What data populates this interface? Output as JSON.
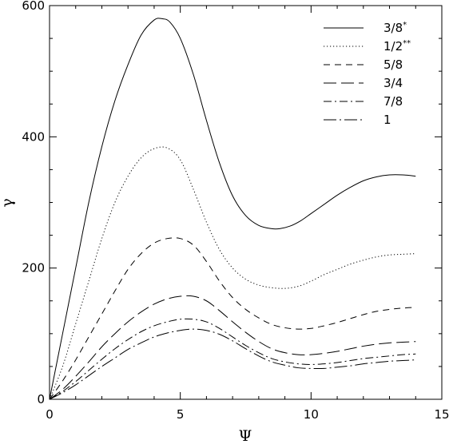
{
  "chart_data": {
    "type": "line",
    "title": "",
    "xlabel": "Ψ",
    "ylabel": "γ",
    "xlim": [
      0,
      15
    ],
    "ylim": [
      0,
      600
    ],
    "xticks": [
      0,
      5,
      10,
      15
    ],
    "yticks": [
      0,
      200,
      400,
      600
    ],
    "grid": false,
    "legend_position": "top-right",
    "series": [
      {
        "name": "3/8",
        "name_sup": "*",
        "dash": "solid",
        "x": [
          0,
          0.5,
          1,
          1.5,
          2,
          2.5,
          3,
          3.5,
          4,
          4.3,
          4.6,
          5,
          5.5,
          6,
          6.5,
          7,
          7.5,
          8,
          8.5,
          8.8,
          9.2,
          9.6,
          10,
          10.5,
          11,
          11.5,
          12,
          12.5,
          13,
          13.5,
          14
        ],
        "y": [
          0,
          100,
          200,
          300,
          385,
          455,
          510,
          555,
          578,
          580,
          575,
          550,
          495,
          425,
          360,
          310,
          280,
          265,
          260,
          260,
          264,
          272,
          283,
          297,
          311,
          323,
          333,
          339,
          342,
          342,
          340
        ]
      },
      {
        "name": "1/2",
        "name_sup": "**",
        "dash": "dotted",
        "x": [
          0,
          0.5,
          1,
          1.5,
          2,
          2.5,
          3,
          3.5,
          4,
          4.5,
          5,
          5.5,
          6,
          6.5,
          7,
          7.5,
          8,
          8.5,
          9,
          9.5,
          10,
          10.5,
          11,
          11.5,
          12,
          12.5,
          13,
          13.5,
          14
        ],
        "y": [
          0,
          50,
          115,
          180,
          245,
          300,
          340,
          368,
          382,
          383,
          365,
          320,
          270,
          228,
          200,
          183,
          174,
          170,
          169,
          172,
          180,
          190,
          198,
          206,
          212,
          217,
          220,
          221,
          222
        ]
      },
      {
        "name": "5/8",
        "name_sup": "",
        "dash": "dashed",
        "x": [
          0,
          0.5,
          1,
          1.5,
          2,
          2.5,
          3,
          3.5,
          4,
          4.5,
          5,
          5.5,
          6,
          6.5,
          7,
          7.5,
          8,
          8.5,
          9,
          9.5,
          10,
          10.5,
          11,
          11.5,
          12,
          12.5,
          13,
          13.5,
          14
        ],
        "y": [
          0,
          28,
          60,
          95,
          130,
          165,
          198,
          222,
          238,
          245,
          245,
          235,
          210,
          180,
          155,
          137,
          124,
          114,
          109,
          107,
          108,
          112,
          117,
          123,
          129,
          134,
          137,
          139,
          140
        ]
      },
      {
        "name": "3/4",
        "name_sup": "",
        "dash": "longdash",
        "x": [
          0,
          0.5,
          1,
          1.5,
          2,
          2.5,
          3,
          3.5,
          4,
          4.5,
          5,
          5.5,
          6,
          6.5,
          7,
          7.5,
          8,
          8.5,
          9,
          9.5,
          10,
          10.5,
          11,
          11.5,
          12,
          12.5,
          13,
          13.5,
          14
        ],
        "y": [
          0,
          15,
          35,
          57,
          80,
          100,
          118,
          133,
          145,
          153,
          157,
          157,
          150,
          135,
          118,
          102,
          88,
          77,
          71,
          68,
          68,
          70,
          73,
          77,
          81,
          84,
          86,
          87,
          88
        ]
      },
      {
        "name": "7/8",
        "name_sup": "",
        "dash": "dashdot",
        "x": [
          0,
          0.5,
          1,
          1.5,
          2,
          2.5,
          3,
          3.5,
          4,
          4.5,
          5,
          5.5,
          6,
          6.5,
          7,
          7.5,
          8,
          8.5,
          9,
          9.5,
          10,
          10.5,
          11,
          11.5,
          12,
          12.5,
          13,
          13.5,
          14
        ],
        "y": [
          0,
          12,
          27,
          44,
          61,
          77,
          91,
          103,
          112,
          118,
          122,
          122,
          118,
          108,
          95,
          82,
          71,
          62,
          57,
          54,
          53,
          54,
          56,
          59,
          62,
          64,
          66,
          68,
          69
        ]
      },
      {
        "name": "1",
        "name_sup": "",
        "dash": "longdashdot",
        "x": [
          0,
          0.5,
          1,
          1.5,
          2,
          2.5,
          3,
          3.5,
          4,
          4.5,
          5,
          5.5,
          6,
          6.5,
          7,
          7.5,
          8,
          8.5,
          9,
          9.5,
          10,
          10.5,
          11,
          11.5,
          12,
          12.5,
          13,
          13.5,
          14
        ],
        "y": [
          0,
          10,
          22,
          36,
          50,
          63,
          76,
          86,
          95,
          101,
          105,
          107,
          105,
          99,
          89,
          77,
          66,
          57,
          52,
          48,
          47,
          47,
          49,
          51,
          54,
          56,
          58,
          59,
          60
        ]
      }
    ]
  }
}
